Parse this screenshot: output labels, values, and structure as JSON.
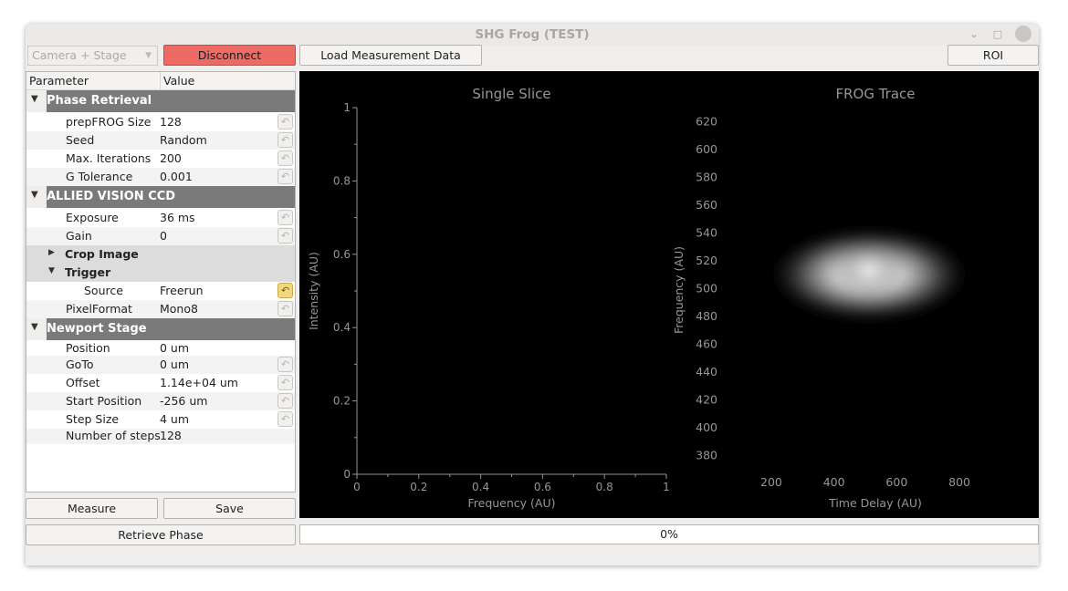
{
  "window": {
    "title": "SHG Frog (TEST)"
  },
  "toolbar": {
    "source_select": "Camera + Stage",
    "disconnect_label": "Disconnect",
    "load_label": "Load Measurement Data",
    "roi_label": "ROI"
  },
  "tree": {
    "col_parameter": "Parameter",
    "col_value": "Value",
    "phase_retrieval": {
      "title": "Phase Retrieval",
      "prepfrog_label": "prepFROG Size",
      "prepfrog_value": "128",
      "seed_label": "Seed",
      "seed_value": "Random",
      "maxiter_label": "Max. Iterations",
      "maxiter_value": "200",
      "gtol_label": "G Tolerance",
      "gtol_value": "0.001"
    },
    "ccd": {
      "title": "ALLIED VISION CCD",
      "exposure_label": "Exposure",
      "exposure_value": "36 ms",
      "gain_label": "Gain",
      "gain_value": "0",
      "crop_label": "Crop Image",
      "trigger_label": "Trigger",
      "source_label": "Source",
      "source_value": "Freerun",
      "pixelformat_label": "PixelFormat",
      "pixelformat_value": "Mono8"
    },
    "stage": {
      "title": "Newport Stage",
      "position_label": "Position",
      "position_value": "0 um",
      "goto_label": "GoTo",
      "goto_value": "0 um",
      "offset_label": "Offset",
      "offset_value": "1.14e+04 um",
      "start_label": "Start Position",
      "start_value": "-256 um",
      "step_label": "Step Size",
      "step_value": "4 um",
      "nsteps_label": "Number of steps",
      "nsteps_value": "128"
    }
  },
  "buttons": {
    "measure_label": "Measure",
    "save_label": "Save",
    "retrieve_label": "Retrieve Phase"
  },
  "progress": {
    "value": 0,
    "text": "0%"
  },
  "colors": {
    "disconnect": "#ee6b65",
    "plot_bg": "#000000",
    "axis": "#969696",
    "group_header": "#7a7a7a"
  },
  "chart_data": [
    {
      "type": "line",
      "title": "Single Slice",
      "xlabel": "Frequency (AU)",
      "ylabel": "Intensity (AU)",
      "xlim": [
        0,
        1
      ],
      "ylim": [
        0,
        1
      ],
      "x_ticks": [
        "0",
        "0.2",
        "0.4",
        "0.6",
        "0.8",
        "1"
      ],
      "y_ticks": [
        "0",
        "0.2",
        "0.4",
        "0.6",
        "0.8",
        "1"
      ],
      "series": []
    },
    {
      "type": "heatmap",
      "title": "FROG Trace",
      "xlabel": "Time Delay (AU)",
      "ylabel": "Frequency (AU)",
      "x_ticks": [
        "200",
        "400",
        "600",
        "800"
      ],
      "y_ticks": [
        "380",
        "400",
        "420",
        "440",
        "460",
        "480",
        "500",
        "520",
        "540",
        "560",
        "580",
        "600",
        "620"
      ],
      "peak": {
        "x": 512,
        "y": 510
      }
    }
  ]
}
